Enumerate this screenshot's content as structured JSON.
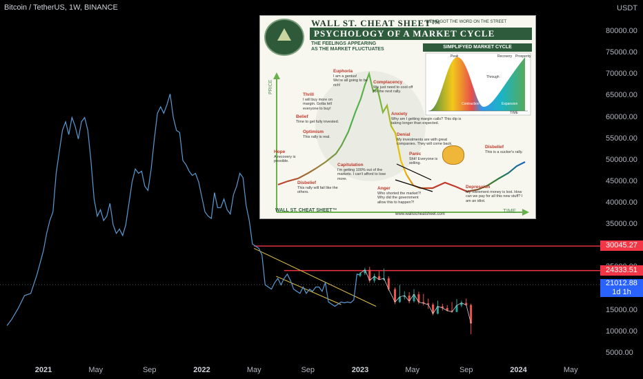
{
  "chart_data": {
    "type": "line",
    "title": "Bitcoin / TetherUS, 1W, BINANCE",
    "currency_label": "USDT",
    "ylim": [
      3000,
      85000
    ],
    "y_ticks": [
      "80000.00",
      "75000.00",
      "70000.00",
      "65000.00",
      "60000.00",
      "55000.00",
      "50000.00",
      "45000.00",
      "40000.00",
      "35000.00",
      "30000.00",
      "25000.00",
      "20000.00",
      "15000.00",
      "10000.00",
      "5000.00"
    ],
    "y_tick_values": [
      80000,
      75000,
      70000,
      65000,
      60000,
      55000,
      50000,
      45000,
      40000,
      35000,
      30000,
      25000,
      20000,
      15000,
      10000,
      5000
    ],
    "x_ticks": [
      {
        "label": "2021",
        "t": 2021.0,
        "bold": true
      },
      {
        "label": "May",
        "t": 2021.33,
        "bold": false
      },
      {
        "label": "Sep",
        "t": 2021.67,
        "bold": false
      },
      {
        "label": "2022",
        "t": 2022.0,
        "bold": true
      },
      {
        "label": "May",
        "t": 2022.33,
        "bold": false
      },
      {
        "label": "Sep",
        "t": 2022.67,
        "bold": false
      },
      {
        "label": "2023",
        "t": 2023.0,
        "bold": true
      },
      {
        "label": "May",
        "t": 2023.33,
        "bold": false
      },
      {
        "label": "Sep",
        "t": 2023.67,
        "bold": false
      },
      {
        "label": "2024",
        "t": 2024.0,
        "bold": true
      },
      {
        "label": "May",
        "t": 2024.33,
        "bold": false
      }
    ],
    "btc_line": {
      "t": [
        2020.77,
        2020.8,
        2020.84,
        2020.88,
        2020.92,
        2020.96,
        2021.0,
        2021.02,
        2021.04,
        2021.06,
        2021.08,
        2021.1,
        2021.12,
        2021.14,
        2021.16,
        2021.18,
        2021.2,
        2021.22,
        2021.24,
        2021.26,
        2021.28,
        2021.3,
        2021.32,
        2021.34,
        2021.36,
        2021.38,
        2021.4,
        2021.42,
        2021.44,
        2021.46,
        2021.48,
        2021.5,
        2021.52,
        2021.54,
        2021.56,
        2021.58,
        2021.6,
        2021.62,
        2021.64,
        2021.66,
        2021.68,
        2021.7,
        2021.72,
        2021.74,
        2021.76,
        2021.78,
        2021.8,
        2021.82,
        2021.84,
        2021.86,
        2021.88,
        2021.9,
        2021.92,
        2021.94,
        2021.96,
        2021.98,
        2022.0,
        2022.02,
        2022.04,
        2022.06,
        2022.08,
        2022.1,
        2022.12,
        2022.14,
        2022.16,
        2022.18,
        2022.2,
        2022.22,
        2022.24,
        2022.26,
        2022.28,
        2022.3,
        2022.32,
        2022.34,
        2022.36,
        2022.38,
        2022.4,
        2022.42,
        2022.44,
        2022.46,
        2022.48,
        2022.5,
        2022.52,
        2022.54,
        2022.56,
        2022.58,
        2022.6,
        2022.62,
        2022.64,
        2022.66,
        2022.68,
        2022.7,
        2022.72,
        2022.74,
        2022.76,
        2022.78,
        2022.8,
        2022.82,
        2022.84,
        2022.86,
        2022.88,
        2022.9,
        2022.92,
        2022.94,
        2022.96,
        2022.98,
        2023.0
      ],
      "y": [
        11500,
        13000,
        15500,
        18500,
        19000,
        23500,
        29000,
        33000,
        36000,
        38000,
        47000,
        52000,
        57000,
        59000,
        56000,
        60000,
        58000,
        55000,
        59000,
        60000,
        57000,
        50000,
        41000,
        37000,
        38500,
        36000,
        37000,
        40000,
        35000,
        33000,
        34000,
        32500,
        35000,
        40000,
        45000,
        48000,
        47000,
        47500,
        44000,
        43000,
        48000,
        55000,
        61000,
        62500,
        61000,
        63000,
        65500,
        60000,
        57000,
        56500,
        50000,
        49000,
        47500,
        46500,
        47000,
        45000,
        41500,
        38000,
        37000,
        36500,
        42500,
        39000,
        39000,
        41000,
        38500,
        37500,
        42000,
        44000,
        47000,
        46000,
        39500,
        36000,
        30500,
        30000,
        29500,
        28000,
        21000,
        20500,
        20000,
        21500,
        22500,
        21000,
        22500,
        23500,
        22000,
        20000,
        19500,
        19000,
        20500,
        19000,
        20000,
        19500,
        20500,
        20500,
        19500,
        21500,
        17000,
        16500,
        16000,
        16500,
        17000,
        16800,
        17000,
        16800,
        17500,
        23500,
        23300
      ]
    },
    "candles": [
      {
        "t": 2023.0,
        "o": 23100,
        "h": 23900,
        "l": 22800,
        "c": 23700
      },
      {
        "t": 2023.03,
        "o": 23700,
        "h": 25000,
        "l": 23300,
        "c": 24500
      },
      {
        "t": 2023.06,
        "o": 24500,
        "h": 25200,
        "l": 21500,
        "c": 22000
      },
      {
        "t": 2023.09,
        "o": 22000,
        "h": 23600,
        "l": 21500,
        "c": 23000
      },
      {
        "t": 2023.12,
        "o": 23000,
        "h": 24200,
        "l": 22400,
        "c": 22200
      },
      {
        "t": 2023.15,
        "o": 22200,
        "h": 24800,
        "l": 22000,
        "c": 22500
      },
      {
        "t": 2023.18,
        "o": 22500,
        "h": 23000,
        "l": 19600,
        "c": 20000
      },
      {
        "t": 2023.22,
        "o": 20000,
        "h": 20400,
        "l": 16500,
        "c": 17000
      },
      {
        "t": 2023.25,
        "o": 17000,
        "h": 21000,
        "l": 16800,
        "c": 18200
      },
      {
        "t": 2023.28,
        "o": 18200,
        "h": 19500,
        "l": 17600,
        "c": 18500
      },
      {
        "t": 2023.31,
        "o": 18500,
        "h": 19300,
        "l": 16700,
        "c": 17200
      },
      {
        "t": 2023.34,
        "o": 17200,
        "h": 20000,
        "l": 16900,
        "c": 18800
      },
      {
        "t": 2023.37,
        "o": 18800,
        "h": 19400,
        "l": 16500,
        "c": 17000
      },
      {
        "t": 2023.4,
        "o": 17000,
        "h": 18900,
        "l": 16200,
        "c": 16700
      },
      {
        "t": 2023.43,
        "o": 16700,
        "h": 17800,
        "l": 15400,
        "c": 16400
      },
      {
        "t": 2023.46,
        "o": 16400,
        "h": 16800,
        "l": 13900,
        "c": 14300
      },
      {
        "t": 2023.49,
        "o": 14300,
        "h": 17300,
        "l": 14100,
        "c": 16000
      },
      {
        "t": 2023.52,
        "o": 16000,
        "h": 16600,
        "l": 15000,
        "c": 15600
      },
      {
        "t": 2023.55,
        "o": 15600,
        "h": 16300,
        "l": 14800,
        "c": 15000
      },
      {
        "t": 2023.58,
        "o": 15000,
        "h": 17000,
        "l": 14500,
        "c": 14700
      },
      {
        "t": 2023.61,
        "o": 14700,
        "h": 17700,
        "l": 14600,
        "c": 16200
      },
      {
        "t": 2023.64,
        "o": 16200,
        "h": 17300,
        "l": 15800,
        "c": 16800
      },
      {
        "t": 2023.67,
        "o": 16800,
        "h": 17800,
        "l": 16100,
        "c": 16300
      },
      {
        "t": 2023.7,
        "o": 16300,
        "h": 16600,
        "l": 9500,
        "c": 12000
      }
    ],
    "trend_lines": [
      {
        "t1": 2022.33,
        "y1": 29500,
        "t2": 2023.1,
        "y2": 16000,
        "color": "#e5c44a"
      },
      {
        "t1": 2022.47,
        "y1": 23000,
        "t2": 2022.88,
        "y2": 16400,
        "color": "#e5c44a"
      }
    ],
    "h_lines": [
      {
        "value": 30045.27,
        "label": "30045.27",
        "color": "#f23645"
      },
      {
        "value": 24333.51,
        "label": "24333.51",
        "color": "#f23645"
      }
    ],
    "last_price": {
      "value": 21012.88,
      "label": "21012.88",
      "countdown": "1d 1h",
      "color": "#2962ff"
    }
  },
  "cheat_sheet": {
    "header_brand": "WALL ST. CHEAT SHEET™",
    "header_tagline": "WE'VE GOT THE WORD ON THE STREET",
    "title": "PSYCHOLOGY OF A MARKET CYCLE",
    "subtitle_1": "THE FEELINGS APPEARING",
    "subtitle_2": "AS THE MARKET FLUCTUATES",
    "simplified_title": "SIMPLIFYED MARKET CYCLE",
    "axis_price": "PRICE",
    "axis_time": "TIME",
    "footer_brand": "WALL ST. CHEAT SHEET™",
    "url": "www.wallstcheatsheet.com",
    "mini": {
      "peak": "Peak",
      "recovery": "Recovery",
      "prosperity": "Prosperity",
      "through": "Through",
      "contraction": "Contraction",
      "expansion": "Expansion",
      "time": "TIME"
    },
    "stages": [
      {
        "name": "Disbelief",
        "text": "This rally will fail like the others."
      },
      {
        "name": "Hope",
        "text": "A recovery is possible."
      },
      {
        "name": "Optimism",
        "text": "This rally is real."
      },
      {
        "name": "Belief",
        "text": "Time to get fully invested."
      },
      {
        "name": "Thrill",
        "text": "I will buy more on margin. Gotta tell everyone to buy!"
      },
      {
        "name": "Euphoria",
        "text": "I am a genius! We're all going to be rich!"
      },
      {
        "name": "Complacency",
        "text": "We just need to cool off for the next rally."
      },
      {
        "name": "Anxiety",
        "text": "Why am I getting margin calls? This dip is taking longer than expected."
      },
      {
        "name": "Denial",
        "text": "My investments are with great companies. They will come back."
      },
      {
        "name": "Panic",
        "text": "Shit! Everyone is selling."
      },
      {
        "name": "Capitulation",
        "text": "I'm getting 100% out of the markets. I can't afford to lose more."
      },
      {
        "name": "Anger",
        "text": "Who shorted the market?! Why did the government allow this to happen?!"
      },
      {
        "name": "Depression",
        "text": "My retirement money is lost. How can we pay for all this new stuff? I am an idiot."
      },
      {
        "name": "Disbelief",
        "text": "This is a sucker's rally."
      }
    ]
  }
}
